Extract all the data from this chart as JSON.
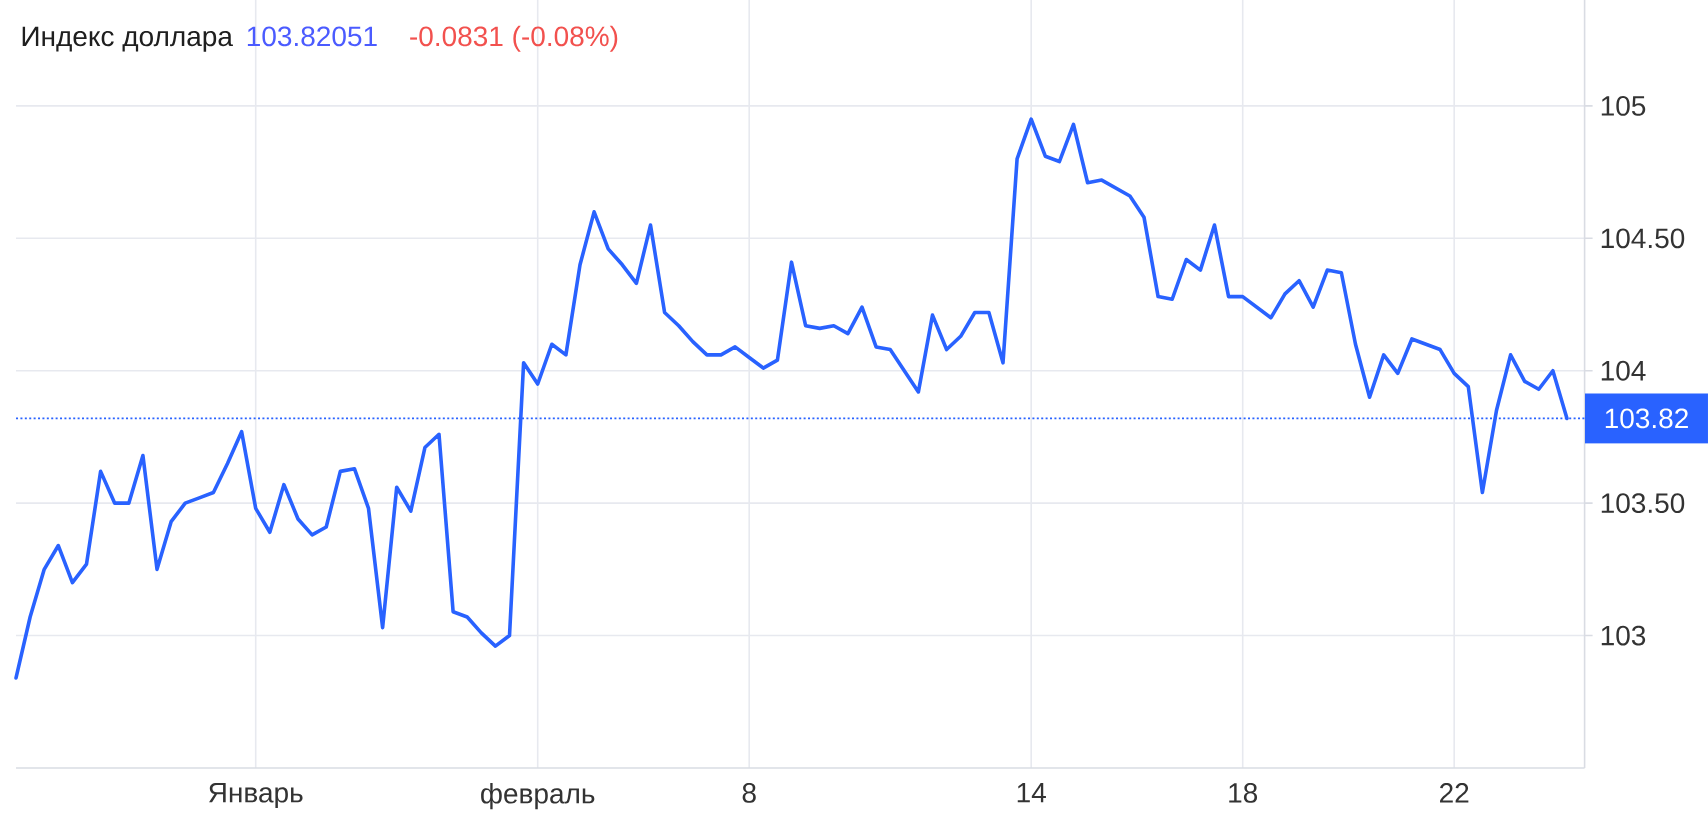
{
  "chart_data": {
    "type": "line",
    "title": "Индекс доллара",
    "annotations": [
      "103.82051",
      "-0.0831 (-0.08%)"
    ],
    "categories": [
      null,
      null,
      null,
      null,
      null,
      null,
      null,
      null,
      null,
      null,
      null,
      null,
      null,
      null,
      null,
      null,
      null,
      "Январь",
      null,
      null,
      null,
      null,
      null,
      null,
      null,
      null,
      null,
      null,
      null,
      null,
      null,
      null,
      null,
      null,
      null,
      null,
      null,
      "февраль",
      null,
      null,
      null,
      null,
      null,
      null,
      null,
      null,
      null,
      null,
      null,
      null,
      null,
      null,
      "8",
      null,
      null,
      null,
      null,
      null,
      null,
      null,
      null,
      null,
      null,
      null,
      null,
      null,
      null,
      null,
      null,
      null,
      null,
      null,
      "14",
      null,
      null,
      null,
      null,
      null,
      null,
      null,
      null,
      null,
      null,
      null,
      null,
      null,
      null,
      "18",
      null,
      null,
      null,
      null,
      null,
      null,
      null,
      null,
      null,
      null,
      null,
      null,
      null,
      null,
      "22",
      null,
      null,
      null,
      null,
      null,
      null,
      null,
      null
    ],
    "series": [
      {
        "color": "#2962ff",
        "values": [
          102.84,
          103.07,
          103.25,
          103.34,
          103.2,
          103.27,
          103.62,
          103.5,
          103.5,
          103.68,
          103.25,
          103.43,
          103.5,
          103.52,
          103.54,
          103.65,
          103.77,
          103.48,
          103.39,
          103.57,
          103.44,
          103.38,
          103.41,
          103.62,
          103.63,
          103.48,
          103.03,
          103.56,
          103.47,
          103.71,
          103.76,
          103.09,
          103.07,
          103.01,
          102.96,
          103.0,
          104.03,
          103.95,
          104.1,
          104.06,
          104.4,
          104.6,
          104.46,
          104.4,
          104.33,
          104.55,
          104.22,
          104.17,
          104.11,
          104.06,
          104.06,
          104.09,
          104.05,
          104.01,
          104.04,
          104.41,
          104.17,
          104.16,
          104.17,
          104.14,
          104.24,
          104.09,
          104.08,
          104.0,
          103.92,
          104.21,
          104.08,
          104.13,
          104.22,
          104.22,
          104.03,
          104.8,
          104.95,
          104.81,
          104.79,
          104.93,
          104.71,
          104.72,
          104.69,
          104.66,
          104.58,
          104.28,
          104.27,
          104.42,
          104.38,
          104.55,
          104.28,
          104.28,
          104.24,
          104.2,
          104.29,
          104.34,
          104.24,
          104.38,
          104.37,
          104.1,
          103.9,
          104.06,
          103.99,
          104.12,
          104.1,
          104.08,
          103.99,
          103.94,
          103.54,
          103.85,
          104.06,
          103.96,
          103.93,
          104.0,
          103.82
        ]
      }
    ],
    "ylim": [
      102.5,
      105.4
    ],
    "yticks": [
      103,
      {
        "value": 103.5,
        "label": "103.50"
      },
      104,
      {
        "value": 104.5,
        "label": "104.50"
      },
      105
    ],
    "grid": true,
    "ref_lines": [
      {
        "axis": "y",
        "value": 103.82,
        "label": "103.82",
        "color": "#2962ff",
        "line_style": "dotted"
      }
    ]
  }
}
